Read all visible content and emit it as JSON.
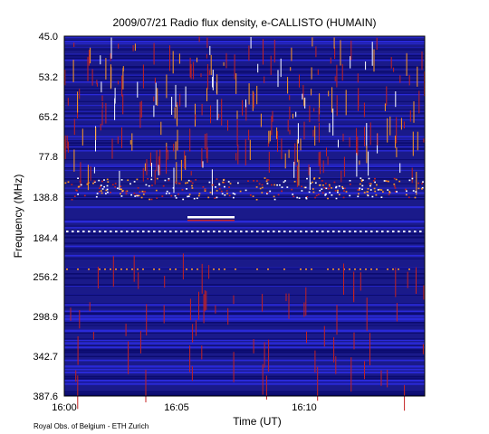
{
  "chart_data": {
    "type": "heatmap",
    "title": "2009/07/21  Radio flux density, e-CALLISTO (HUMAIN)",
    "xlabel": "Time (UT)",
    "ylabel": "Frequency (MHz)",
    "x_tick_labels": [
      "16:00",
      "16:05",
      "16:10"
    ],
    "y_tick_labels": [
      "45.0",
      "53.2",
      "65.2",
      "77.8",
      "138.8",
      "184.4",
      "256.2",
      "298.9",
      "342.7",
      "387.6"
    ],
    "y_axis_direction": "frequency increases downward",
    "colormap": [
      "#0b0b6e",
      "#2a2ad8",
      "#c42222",
      "#ff9a22",
      "#ffffff"
    ],
    "description_values": {
      "strong_emission_band": "138.8 MHz region, bright interference across full time range",
      "narrowband_burst": "near 160 MHz, 16:05–16:07 UT"
    }
  },
  "credit": "Royal Obs. of Belgium - ETH Zurich"
}
